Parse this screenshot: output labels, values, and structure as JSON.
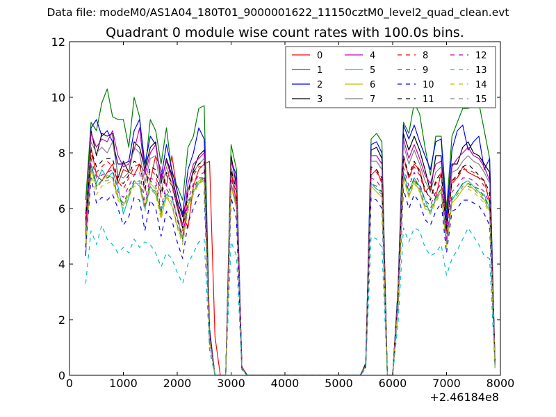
{
  "file_label": "Data file: modeM0/AS1A04_180T01_9000001622_11150cztM0_level2_quad_clean.evt",
  "chart_data": {
    "type": "line",
    "title": "Quadrant 0 module wise count rates with 100.0s bins.",
    "xlabel": "",
    "ylabel": "",
    "x_offset_label": "+2.46184e8",
    "xlim": [
      0,
      8000
    ],
    "ylim": [
      0,
      12
    ],
    "xticks": [
      0,
      1000,
      2000,
      3000,
      4000,
      5000,
      6000,
      7000,
      8000
    ],
    "yticks": [
      0,
      2,
      4,
      6,
      8,
      10,
      12
    ],
    "grid": false,
    "legend_position": "top-right",
    "legend_columns": 4,
    "x": [
      300,
      400,
      500,
      600,
      700,
      800,
      900,
      1000,
      1100,
      1200,
      1300,
      1400,
      1500,
      1600,
      1700,
      1800,
      1900,
      2000,
      2100,
      2200,
      2300,
      2400,
      2500,
      2600,
      2700,
      2800,
      2900,
      3000,
      3100,
      3200,
      3300,
      3400,
      5400,
      5500,
      5600,
      5700,
      5800,
      5900,
      6000,
      6100,
      6200,
      6300,
      6400,
      6500,
      6600,
      6700,
      6800,
      6900,
      7000,
      7100,
      7200,
      7300,
      7400,
      7500,
      7600,
      7700,
      7800,
      7900
    ],
    "series": [
      {
        "name": "0",
        "color": "#ff0000",
        "dash": "solid",
        "values": [
          5.2,
          8.2,
          7.2,
          7.0,
          7.3,
          7.6,
          6.9,
          7.4,
          7.3,
          7.2,
          7.6,
          7.3,
          7.0,
          7.9,
          7.4,
          6.8,
          7.9,
          6.6,
          5.8,
          5.3,
          6.8,
          7.4,
          7.6,
          7.7,
          1.4,
          0.0,
          0.0,
          7.3,
          6.2,
          0.25,
          0.0,
          0.0,
          0.0,
          0.4,
          7.2,
          7.4,
          6.9,
          0.0,
          0.0,
          2.9,
          7.9,
          7.1,
          7.6,
          7.4,
          6.6,
          6.8,
          6.4,
          7.3,
          5.5,
          7.0,
          7.1,
          7.5,
          7.3,
          7.2,
          7.1,
          7.0,
          6.2,
          0.3
        ]
      },
      {
        "name": "1",
        "color": "#008000",
        "dash": "solid",
        "values": [
          6.3,
          9.1,
          8.8,
          9.8,
          10.3,
          9.3,
          9.2,
          9.2,
          8.2,
          10.0,
          9.3,
          7.3,
          9.2,
          8.8,
          7.6,
          8.9,
          7.3,
          6.8,
          6.3,
          8.2,
          8.6,
          9.6,
          9.7,
          1.7,
          0.0,
          0.0,
          0.0,
          8.3,
          7.4,
          0.3,
          0.0,
          0.0,
          0.0,
          0.45,
          8.5,
          8.7,
          8.4,
          0.0,
          0.0,
          3.2,
          9.1,
          8.7,
          9.8,
          9.4,
          8.2,
          7.2,
          8.6,
          8.6,
          6.0,
          8.6,
          9.1,
          9.6,
          9.6,
          9.7,
          9.8,
          8.8,
          7.8,
          0.4
        ]
      },
      {
        "name": "2",
        "color": "#0000ff",
        "dash": "solid",
        "values": [
          4.3,
          8.9,
          9.2,
          8.6,
          8.8,
          8.4,
          7.6,
          7.6,
          7.7,
          8.8,
          9.2,
          7.6,
          8.6,
          8.3,
          7.1,
          8.3,
          7.4,
          6.6,
          5.8,
          7.4,
          8.0,
          8.9,
          8.5,
          1.6,
          0.0,
          0.0,
          0.0,
          7.7,
          7.2,
          0.3,
          0.0,
          0.0,
          0.0,
          0.4,
          8.3,
          8.4,
          8.0,
          0.0,
          0.0,
          3.1,
          9.0,
          8.5,
          9.0,
          8.4,
          7.9,
          7.4,
          8.4,
          8.5,
          5.7,
          8.1,
          8.8,
          9.0,
          8.1,
          8.4,
          8.6,
          7.4,
          7.8,
          0.4
        ]
      },
      {
        "name": "3",
        "color": "#000000",
        "dash": "solid",
        "values": [
          5.8,
          8.8,
          7.9,
          8.7,
          8.6,
          8.7,
          7.1,
          7.7,
          7.3,
          8.4,
          8.2,
          7.4,
          8.2,
          8.4,
          6.9,
          7.8,
          7.2,
          6.3,
          5.7,
          6.6,
          7.4,
          7.9,
          8.1,
          1.5,
          0.0,
          0.0,
          0.0,
          7.9,
          6.8,
          0.3,
          0.0,
          0.0,
          0.0,
          0.4,
          8.1,
          8.2,
          7.8,
          0.0,
          0.0,
          3.0,
          8.7,
          8.1,
          8.6,
          8.1,
          7.4,
          6.6,
          7.9,
          7.9,
          5.4,
          7.6,
          7.6,
          8.2,
          8.4,
          8.0,
          7.9,
          7.6,
          7.3,
          0.35
        ]
      },
      {
        "name": "4",
        "color": "#bf00bf",
        "dash": "solid",
        "values": [
          5.5,
          8.7,
          8.2,
          8.5,
          8.4,
          8.8,
          7.9,
          7.5,
          7.6,
          8.1,
          8.9,
          7.2,
          8.0,
          8.3,
          7.0,
          7.7,
          7.1,
          6.2,
          5.4,
          6.9,
          7.6,
          7.8,
          8.0,
          1.5,
          0.0,
          0.0,
          0.0,
          7.7,
          7.0,
          0.3,
          0.0,
          0.0,
          0.0,
          0.4,
          7.9,
          7.9,
          7.6,
          0.0,
          0.0,
          3.0,
          8.5,
          7.8,
          8.3,
          7.8,
          7.2,
          6.9,
          7.6,
          7.7,
          5.3,
          7.5,
          7.8,
          8.0,
          8.2,
          7.9,
          7.8,
          7.5,
          7.0,
          0.35
        ]
      },
      {
        "name": "5",
        "color": "#00bfbf",
        "dash": "solid",
        "values": [
          4.7,
          7.6,
          6.9,
          7.4,
          7.1,
          7.3,
          6.8,
          5.8,
          6.4,
          7.0,
          6.8,
          6.0,
          6.8,
          6.5,
          5.9,
          6.5,
          6.4,
          5.7,
          4.9,
          6.1,
          6.6,
          6.9,
          7.1,
          1.3,
          0.0,
          0.0,
          0.0,
          6.9,
          6.1,
          0.25,
          0.0,
          0.0,
          0.0,
          0.35,
          6.9,
          6.7,
          6.6,
          0.0,
          0.0,
          2.6,
          7.3,
          6.6,
          7.1,
          6.8,
          6.3,
          5.8,
          6.4,
          6.7,
          4.8,
          6.3,
          6.6,
          6.9,
          7.0,
          6.8,
          6.6,
          6.5,
          6.0,
          0.3
        ]
      },
      {
        "name": "6",
        "color": "#bfbf00",
        "dash": "solid",
        "values": [
          4.5,
          7.4,
          6.8,
          7.0,
          7.2,
          7.1,
          6.4,
          6.1,
          6.5,
          6.9,
          6.9,
          6.1,
          6.9,
          6.7,
          5.7,
          6.4,
          6.1,
          5.4,
          4.9,
          6.1,
          6.6,
          7.0,
          7.0,
          1.3,
          0.0,
          0.0,
          0.0,
          6.8,
          6.0,
          0.25,
          0.0,
          0.0,
          0.0,
          0.35,
          6.8,
          6.6,
          6.4,
          0.0,
          0.0,
          2.6,
          7.1,
          6.4,
          7.0,
          6.6,
          6.0,
          5.9,
          6.3,
          6.6,
          4.7,
          6.2,
          6.4,
          6.7,
          6.9,
          6.7,
          6.6,
          6.3,
          5.9,
          0.3
        ]
      },
      {
        "name": "7",
        "color": "#808080",
        "dash": "solid",
        "values": [
          5.9,
          8.4,
          8.0,
          8.2,
          8.0,
          8.4,
          7.2,
          7.1,
          7.3,
          8.2,
          8.0,
          6.9,
          7.8,
          7.9,
          6.6,
          7.5,
          6.9,
          6.0,
          5.3,
          6.6,
          7.3,
          7.6,
          7.8,
          1.4,
          0.0,
          0.0,
          0.0,
          7.5,
          6.7,
          0.3,
          0.0,
          0.0,
          0.0,
          0.4,
          7.7,
          7.7,
          7.4,
          0.0,
          0.0,
          2.9,
          8.3,
          7.6,
          8.1,
          7.6,
          7.0,
          6.6,
          7.3,
          7.5,
          5.1,
          7.3,
          7.4,
          7.7,
          7.9,
          7.7,
          7.6,
          7.3,
          6.9,
          0.35
        ]
      },
      {
        "name": "8",
        "color": "#ff0000",
        "dash": "dashed",
        "values": [
          5.4,
          8.0,
          7.3,
          7.5,
          7.7,
          7.5,
          7.0,
          6.7,
          7.1,
          7.5,
          7.6,
          6.6,
          7.4,
          7.2,
          6.4,
          7.2,
          6.8,
          6.1,
          5.2,
          6.5,
          7.2,
          7.5,
          7.5,
          1.4,
          0.0,
          0.0,
          0.0,
          7.3,
          6.5,
          0.3,
          0.0,
          0.0,
          0.0,
          0.4,
          7.4,
          7.3,
          7.0,
          0.0,
          0.0,
          2.8,
          7.8,
          7.1,
          7.5,
          7.2,
          6.6,
          6.4,
          6.9,
          7.2,
          5.2,
          6.9,
          7.1,
          7.4,
          7.4,
          7.3,
          7.1,
          6.8,
          6.4,
          0.3
        ]
      },
      {
        "name": "9",
        "color": "#008000",
        "dash": "dashed",
        "values": [
          5.0,
          7.6,
          6.8,
          7.0,
          7.1,
          7.2,
          6.4,
          6.2,
          6.6,
          7.0,
          7.0,
          6.1,
          7.0,
          6.8,
          5.9,
          6.7,
          6.4,
          5.6,
          4.9,
          6.2,
          6.7,
          7.1,
          7.1,
          1.3,
          0.0,
          0.0,
          0.0,
          6.9,
          6.1,
          0.25,
          0.0,
          0.0,
          0.0,
          0.35,
          6.9,
          6.8,
          6.6,
          0.0,
          0.0,
          2.6,
          7.3,
          6.6,
          7.1,
          6.7,
          6.1,
          6.0,
          6.4,
          6.7,
          4.8,
          6.4,
          6.6,
          6.9,
          6.9,
          6.8,
          6.7,
          6.4,
          6.0,
          0.3
        ]
      },
      {
        "name": "10",
        "color": "#0000ff",
        "dash": "dashed",
        "values": [
          4.6,
          7.1,
          6.2,
          6.4,
          6.3,
          6.5,
          6.0,
          5.4,
          5.7,
          6.4,
          6.3,
          5.2,
          6.3,
          6.0,
          5.0,
          5.9,
          5.6,
          4.8,
          4.2,
          5.5,
          6.0,
          6.5,
          6.6,
          1.2,
          0.0,
          0.0,
          0.0,
          6.4,
          5.6,
          0.2,
          0.0,
          0.0,
          0.0,
          0.3,
          6.4,
          6.3,
          6.0,
          0.0,
          0.0,
          2.4,
          6.7,
          6.0,
          6.5,
          6.2,
          5.6,
          5.4,
          5.9,
          6.2,
          4.4,
          5.9,
          6.0,
          6.3,
          6.3,
          6.2,
          6.1,
          5.8,
          5.4,
          0.25
        ]
      },
      {
        "name": "11",
        "color": "#000000",
        "dash": "dashed",
        "values": [
          5.6,
          8.1,
          7.5,
          7.7,
          7.8,
          7.8,
          7.0,
          6.9,
          7.2,
          7.7,
          7.6,
          6.7,
          7.5,
          7.4,
          6.5,
          7.3,
          6.9,
          6.1,
          5.3,
          6.6,
          7.3,
          7.6,
          7.7,
          1.4,
          0.0,
          0.0,
          0.0,
          7.4,
          6.6,
          0.3,
          0.0,
          0.0,
          0.0,
          0.4,
          7.5,
          7.4,
          7.1,
          0.0,
          0.0,
          2.8,
          7.9,
          7.2,
          7.7,
          7.3,
          6.7,
          6.3,
          7.0,
          7.3,
          5.2,
          7.0,
          7.2,
          7.5,
          7.6,
          7.4,
          7.2,
          7.0,
          6.6,
          0.3
        ]
      },
      {
        "name": "12",
        "color": "#bf00bf",
        "dash": "dashed",
        "values": [
          5.1,
          7.8,
          7.1,
          7.2,
          7.3,
          7.4,
          6.6,
          6.4,
          6.8,
          7.2,
          7.3,
          6.3,
          7.1,
          7.0,
          6.0,
          6.9,
          6.5,
          5.7,
          5.0,
          6.3,
          6.9,
          7.2,
          7.3,
          1.3,
          0.0,
          0.0,
          0.0,
          7.1,
          6.3,
          0.25,
          0.0,
          0.0,
          0.0,
          0.35,
          7.1,
          7.0,
          6.7,
          0.0,
          0.0,
          2.7,
          7.5,
          6.8,
          7.3,
          6.9,
          6.3,
          6.1,
          6.6,
          6.9,
          4.9,
          6.6,
          6.8,
          7.1,
          7.1,
          7.0,
          6.8,
          6.6,
          6.2,
          0.3
        ]
      },
      {
        "name": "13",
        "color": "#00bfbf",
        "dash": "dashed",
        "values": [
          3.3,
          5.2,
          4.7,
          5.4,
          4.9,
          4.7,
          4.4,
          4.6,
          4.4,
          4.9,
          4.6,
          4.8,
          4.7,
          4.4,
          3.9,
          4.4,
          4.2,
          3.7,
          3.3,
          4.0,
          4.4,
          4.8,
          4.9,
          0.9,
          0.0,
          0.0,
          0.0,
          4.8,
          4.3,
          0.2,
          0.0,
          0.0,
          0.0,
          0.25,
          5.0,
          4.9,
          4.6,
          0.0,
          0.0,
          1.9,
          5.3,
          4.8,
          5.3,
          5.2,
          4.6,
          4.3,
          4.4,
          4.7,
          3.6,
          4.2,
          4.5,
          4.9,
          5.3,
          5.0,
          4.7,
          4.3,
          4.2,
          0.2
        ]
      },
      {
        "name": "14",
        "color": "#bfbf00",
        "dash": "dashed",
        "values": [
          4.8,
          7.3,
          6.5,
          6.8,
          6.9,
          7.0,
          6.3,
          6.0,
          6.4,
          6.8,
          6.8,
          5.9,
          6.7,
          6.5,
          5.6,
          6.5,
          6.1,
          5.3,
          4.7,
          5.9,
          6.5,
          6.9,
          7.0,
          1.3,
          0.0,
          0.0,
          0.0,
          6.8,
          6.0,
          0.25,
          0.0,
          0.0,
          0.0,
          0.35,
          6.8,
          6.6,
          6.4,
          0.0,
          0.0,
          2.5,
          7.1,
          6.4,
          6.9,
          6.6,
          6.0,
          5.8,
          6.2,
          6.6,
          4.6,
          6.2,
          6.4,
          6.7,
          6.7,
          6.6,
          6.4,
          6.2,
          5.8,
          0.3
        ]
      },
      {
        "name": "15",
        "color": "#808080",
        "dash": "dashed",
        "values": [
          4.9,
          7.5,
          6.7,
          7.0,
          7.0,
          7.1,
          6.4,
          6.1,
          6.5,
          6.9,
          7.0,
          6.0,
          6.8,
          6.6,
          5.8,
          6.6,
          6.2,
          5.4,
          4.8,
          6.0,
          6.6,
          7.0,
          7.1,
          1.3,
          0.0,
          0.0,
          0.0,
          6.9,
          6.1,
          0.25,
          0.0,
          0.0,
          0.0,
          0.35,
          6.9,
          6.7,
          6.5,
          0.0,
          0.0,
          2.6,
          7.2,
          6.5,
          7.0,
          6.7,
          6.1,
          5.9,
          6.3,
          6.7,
          4.7,
          6.3,
          6.5,
          6.8,
          6.8,
          6.7,
          6.5,
          6.3,
          5.9,
          0.3
        ]
      }
    ]
  }
}
